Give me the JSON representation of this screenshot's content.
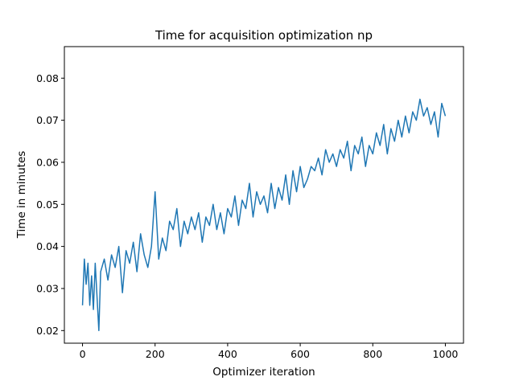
{
  "chart_data": {
    "type": "line",
    "title": "Time for acquisition optimization np",
    "xlabel": "Optimizer iteration",
    "ylabel": "Time in minutes",
    "xlim": [
      -50,
      1050
    ],
    "ylim": [
      0.017,
      0.0875
    ],
    "xticks": [
      0,
      200,
      400,
      600,
      800,
      1000
    ],
    "yticks": [
      0.02,
      0.03,
      0.04,
      0.05,
      0.06,
      0.07,
      0.08
    ],
    "xtick_labels": [
      "0",
      "200",
      "400",
      "600",
      "800",
      "1000"
    ],
    "ytick_labels": [
      "0.02",
      "0.03",
      "0.04",
      "0.05",
      "0.06",
      "0.07",
      "0.08"
    ],
    "grid": false,
    "series": [
      {
        "color": "#1f77b4",
        "x": [
          0,
          5,
          10,
          15,
          20,
          25,
          30,
          35,
          40,
          45,
          50,
          60,
          70,
          80,
          90,
          100,
          110,
          120,
          130,
          140,
          150,
          160,
          170,
          180,
          190,
          200,
          210,
          220,
          230,
          240,
          250,
          260,
          270,
          280,
          290,
          300,
          310,
          320,
          330,
          340,
          350,
          360,
          370,
          380,
          390,
          400,
          410,
          420,
          430,
          440,
          450,
          460,
          470,
          480,
          490,
          500,
          510,
          520,
          530,
          540,
          550,
          560,
          570,
          580,
          590,
          600,
          610,
          620,
          630,
          640,
          650,
          660,
          670,
          680,
          690,
          700,
          710,
          720,
          730,
          740,
          750,
          760,
          770,
          780,
          790,
          800,
          810,
          820,
          830,
          840,
          850,
          860,
          870,
          880,
          890,
          900,
          910,
          920,
          930,
          940,
          950,
          960,
          970,
          980,
          990,
          1000
        ],
        "y": [
          0.026,
          0.037,
          0.031,
          0.036,
          0.026,
          0.033,
          0.025,
          0.036,
          0.028,
          0.02,
          0.034,
          0.037,
          0.032,
          0.038,
          0.035,
          0.04,
          0.029,
          0.039,
          0.036,
          0.041,
          0.034,
          0.043,
          0.038,
          0.035,
          0.04,
          0.053,
          0.037,
          0.042,
          0.039,
          0.046,
          0.044,
          0.049,
          0.04,
          0.046,
          0.043,
          0.047,
          0.044,
          0.048,
          0.041,
          0.047,
          0.045,
          0.05,
          0.044,
          0.048,
          0.043,
          0.049,
          0.047,
          0.052,
          0.045,
          0.051,
          0.049,
          0.055,
          0.047,
          0.053,
          0.05,
          0.052,
          0.048,
          0.055,
          0.049,
          0.054,
          0.051,
          0.057,
          0.05,
          0.058,
          0.053,
          0.059,
          0.054,
          0.056,
          0.059,
          0.058,
          0.061,
          0.057,
          0.063,
          0.06,
          0.062,
          0.059,
          0.063,
          0.061,
          0.065,
          0.058,
          0.064,
          0.062,
          0.066,
          0.059,
          0.064,
          0.062,
          0.067,
          0.064,
          0.069,
          0.062,
          0.068,
          0.065,
          0.07,
          0.066,
          0.071,
          0.067,
          0.072,
          0.07,
          0.075,
          0.071,
          0.073,
          0.069,
          0.072,
          0.066,
          0.074,
          0.071
        ]
      }
    ]
  }
}
